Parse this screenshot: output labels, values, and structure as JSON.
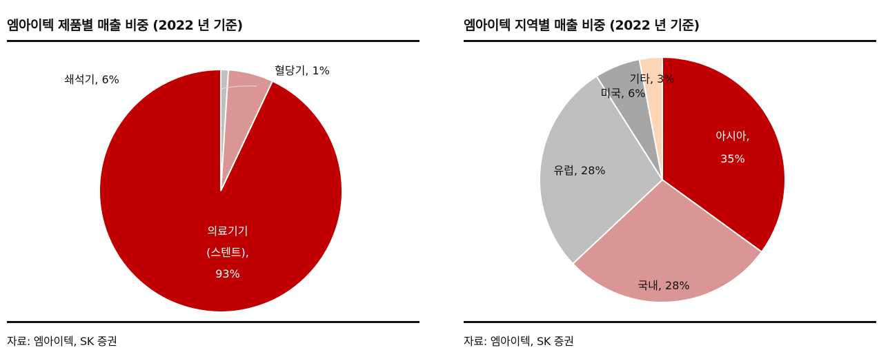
{
  "charts": [
    {
      "title": "엠아이텍 제품별 매출 비중 (2022 년 기준)",
      "source": "자료: 엠아이텍, SK 증권"
    },
    {
      "title": "엠아이텍 지역별 매출 비중 (2022 년 기준)",
      "source": "자료: 엠아이텍, SK 증권"
    }
  ],
  "chart_data": [
    {
      "type": "pie",
      "title": "엠아이텍 제품별 매출 비중 (2022 년 기준)",
      "start_angle_deg": 0,
      "direction": "counterclockwise",
      "slices": [
        {
          "label_lines": [
            "의료기기",
            "(스텐트),",
            "93%"
          ],
          "value": 93,
          "color": "#c00000",
          "label_color": "#ffffff"
        },
        {
          "label_lines": [
            "쇄석기, 6%"
          ],
          "value": 6,
          "color": "#d99694",
          "label_color": "#111111"
        },
        {
          "label_lines": [
            "혈당기, 1%"
          ],
          "value": 1,
          "color": "#bfbfbf",
          "label_color": "#111111"
        }
      ]
    },
    {
      "type": "pie",
      "title": "엠아이텍 지역별 매출 비중 (2022 년 기준)",
      "start_angle_deg": 0,
      "direction": "clockwise",
      "slices": [
        {
          "label_lines": [
            "아시아,",
            "35%"
          ],
          "value": 35,
          "color": "#c00000",
          "label_color": "#ffffff"
        },
        {
          "label_lines": [
            "국내, 28%"
          ],
          "value": 28,
          "color": "#d99694",
          "label_color": "#111111"
        },
        {
          "label_lines": [
            "유럽, 28%"
          ],
          "value": 28,
          "color": "#bfbfbf",
          "label_color": "#111111"
        },
        {
          "label_lines": [
            "미국, 6%"
          ],
          "value": 6,
          "color": "#a6a6a6",
          "label_color": "#111111"
        },
        {
          "label_lines": [
            "기타, 3%"
          ],
          "value": 3,
          "color": "#fbd5b5",
          "label_color": "#111111"
        }
      ]
    }
  ]
}
